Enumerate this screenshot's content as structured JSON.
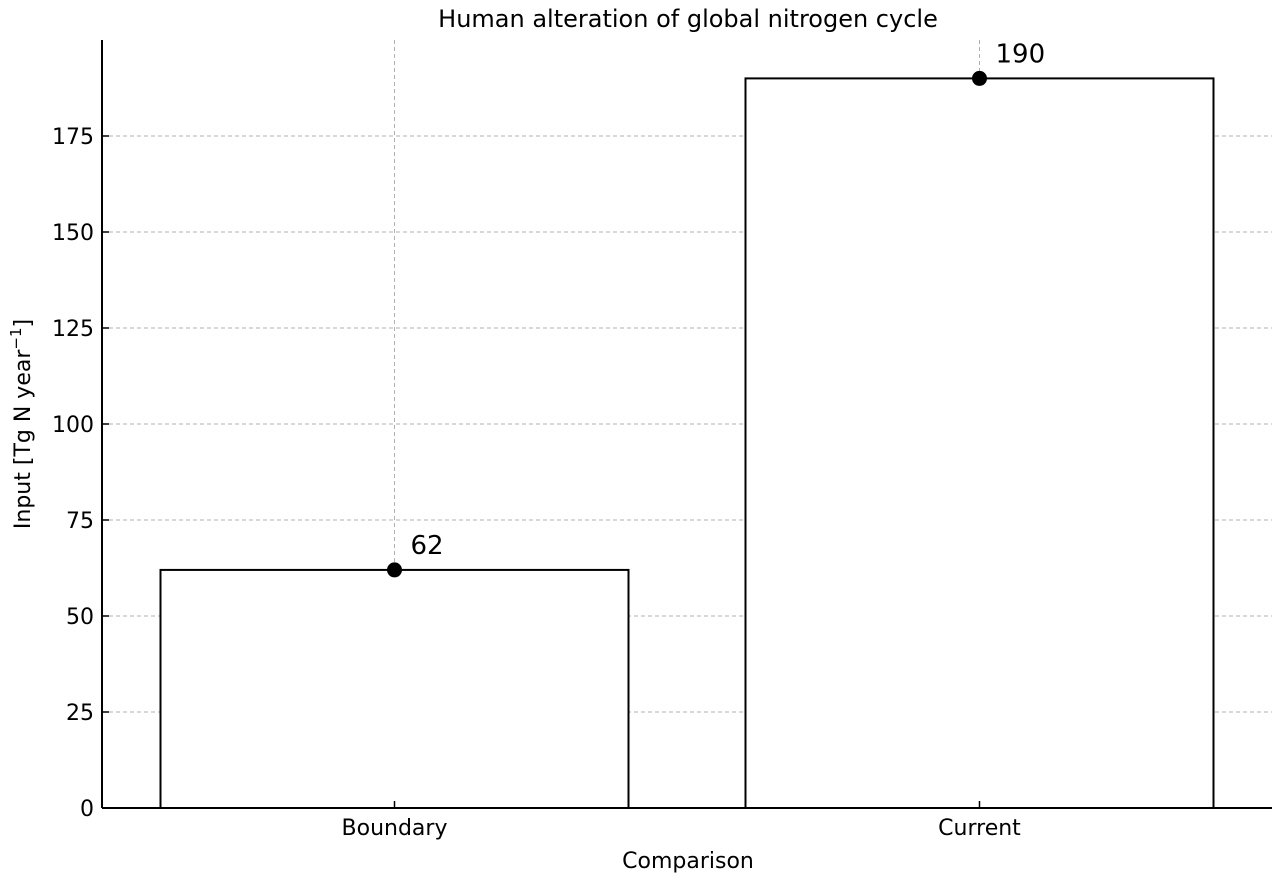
{
  "chart_data": {
    "type": "bar",
    "title": "Human alteration of global nitrogen cycle",
    "xlabel": "Comparison",
    "ylabel_main": "Input [Tg N year",
    "ylabel_sup": "−1",
    "ylabel_end": "]",
    "categories": [
      "Boundary",
      "Current"
    ],
    "values": [
      62,
      190
    ],
    "data_labels": [
      "62",
      "190"
    ],
    "ylim": [
      0,
      200
    ],
    "yticks": [
      0,
      25,
      50,
      75,
      100,
      125,
      150,
      175
    ],
    "ytick_labels": [
      "0",
      "25",
      "50",
      "75",
      "100",
      "125",
      "150",
      "175"
    ],
    "grid": true,
    "bar_fill": "#ffffff",
    "bar_edge": "#000000",
    "marker_color": "#000000",
    "grid_color": "#b0b0b0"
  }
}
